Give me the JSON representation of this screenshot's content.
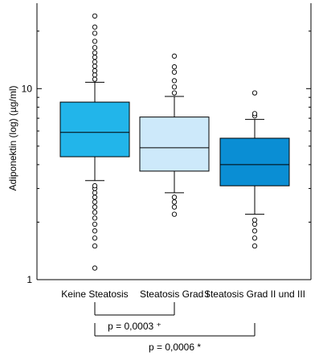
{
  "chart_data": {
    "type": "box",
    "ylabel": "Adiponektin (log) (µg/ml)",
    "yscale": "log",
    "ylim": [
      1,
      28
    ],
    "y_ticks": [
      {
        "value": 1,
        "label": "1"
      },
      {
        "value": 10,
        "label": "10"
      }
    ],
    "categories": [
      "Keine Steatosis",
      "Steatosis Grad I",
      "Steatosis Grad II und III"
    ],
    "boxes": [
      {
        "category": "Keine Steatosis",
        "color": "#22b5ea",
        "whisker_low": 3.3,
        "q1": 4.4,
        "median": 5.9,
        "q3": 8.5,
        "whisker_high": 10.8,
        "outliers": [
          1.15,
          1.5,
          1.65,
          1.8,
          1.95,
          2.1,
          2.25,
          2.4,
          2.55,
          2.7,
          2.85,
          3.0,
          3.1,
          11.2,
          11.8,
          12.4,
          13.1,
          13.8,
          14.6,
          15.4,
          16.4,
          17.7,
          19.5,
          21.0,
          24.0
        ]
      },
      {
        "category": "Steatosis Grad I",
        "color": "#cde9fa",
        "whisker_low": 2.85,
        "q1": 3.7,
        "median": 4.9,
        "q3": 7.1,
        "whisker_high": 9.1,
        "outliers": [
          2.2,
          2.4,
          2.55,
          2.7,
          9.5,
          10.2,
          11.0,
          12.2,
          13.0,
          14.8
        ]
      },
      {
        "category": "Steatosis Grad II und III",
        "color": "#0a8ed4",
        "whisker_low": 2.2,
        "q1": 3.1,
        "median": 4.0,
        "q3": 5.5,
        "whisker_high": 6.9,
        "outliers": [
          1.5,
          1.65,
          1.8,
          1.95,
          2.05,
          7.2,
          7.4,
          9.5
        ]
      }
    ],
    "comparisons": [
      {
        "from": "Keine Steatosis",
        "to": "Steatosis Grad I",
        "label": "p = 0,0003 ⁺"
      },
      {
        "from": "Keine Steatosis",
        "to": "Steatosis Grad II und III",
        "label": "p = 0,0006 *"
      }
    ],
    "grid": false,
    "frame_color": "#000000",
    "line_color": "#000000"
  }
}
